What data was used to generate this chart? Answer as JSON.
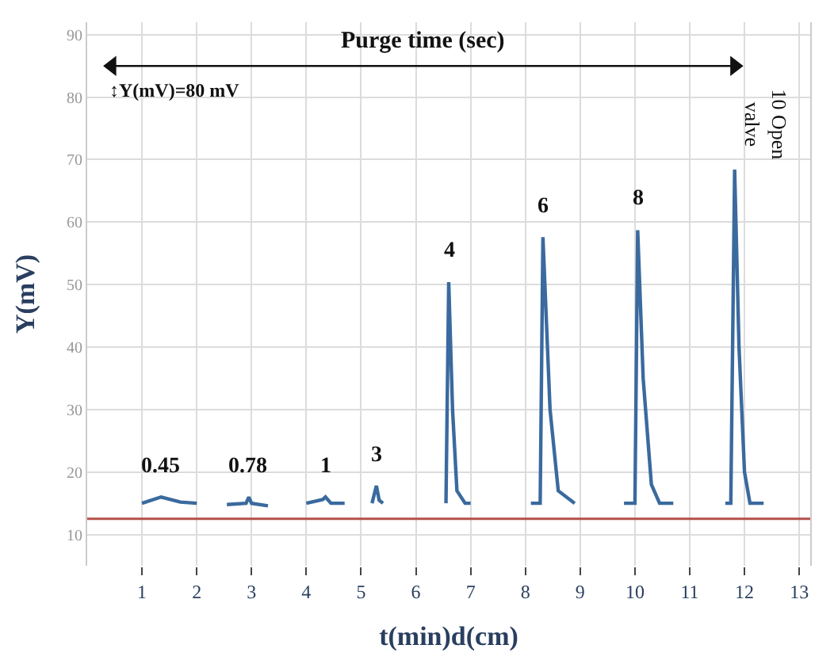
{
  "chart_data": {
    "type": "line",
    "xlabel": "t(min)d(cm)",
    "ylabel": "Y(mV)",
    "x": [
      1.0,
      1.35,
      1.7,
      2.0,
      2.01,
      2.55,
      2.9,
      2.95,
      3.0,
      3.3,
      3.31,
      4.0,
      4.3,
      4.35,
      4.45,
      4.7,
      4.71,
      5.2,
      5.28,
      5.33,
      5.4,
      5.41,
      6.55,
      6.6,
      6.67,
      6.75,
      6.9,
      7.0,
      7.01,
      8.1,
      8.27,
      8.32,
      8.45,
      8.6,
      8.9,
      8.91,
      9.8,
      10.0,
      10.05,
      10.15,
      10.3,
      10.45,
      10.7,
      10.71,
      11.65,
      11.75,
      11.82,
      11.9,
      12.0,
      12.1,
      12.35
    ],
    "series": [
      {
        "color": "#3a6a9e",
        "values": [
          15,
          16,
          15.2,
          15,
          null,
          14.8,
          15,
          16,
          15,
          14.6,
          null,
          15,
          15.6,
          16,
          15,
          15,
          null,
          15,
          17.8,
          15.5,
          15,
          null,
          15,
          50.4,
          30,
          17,
          15,
          15,
          null,
          15,
          15,
          57.6,
          30,
          17,
          15,
          null,
          15,
          15,
          58.7,
          35,
          18,
          15,
          15,
          null,
          15,
          15,
          68.4,
          40,
          20,
          15,
          15
        ]
      },
      {
        "type": "line",
        "color": "#111111",
        "marker": "triangle",
        "x": [
          0.45,
          11.82
        ],
        "values": [
          85,
          85
        ]
      }
    ],
    "xlim": [
      0,
      13.2
    ],
    "xticks": [
      1,
      2,
      3,
      4,
      5,
      6,
      7,
      8,
      9,
      10,
      11,
      12,
      13
    ],
    "ylim": [
      5,
      92
    ],
    "yticks": [
      10,
      20,
      30,
      40,
      50,
      60,
      70,
      80,
      90
    ],
    "ref_lines": [
      {
        "axis": "y",
        "value": 12.5,
        "color": "#b5504a"
      }
    ],
    "grid": true,
    "marker": "none",
    "line_style": "solid",
    "annotations": [
      "0.45",
      "0.78",
      "1",
      "3",
      "4",
      "6",
      "8",
      "10 Open valve",
      "↕Y(mV)=80 mV",
      "Purge time (sec)"
    ]
  }
}
